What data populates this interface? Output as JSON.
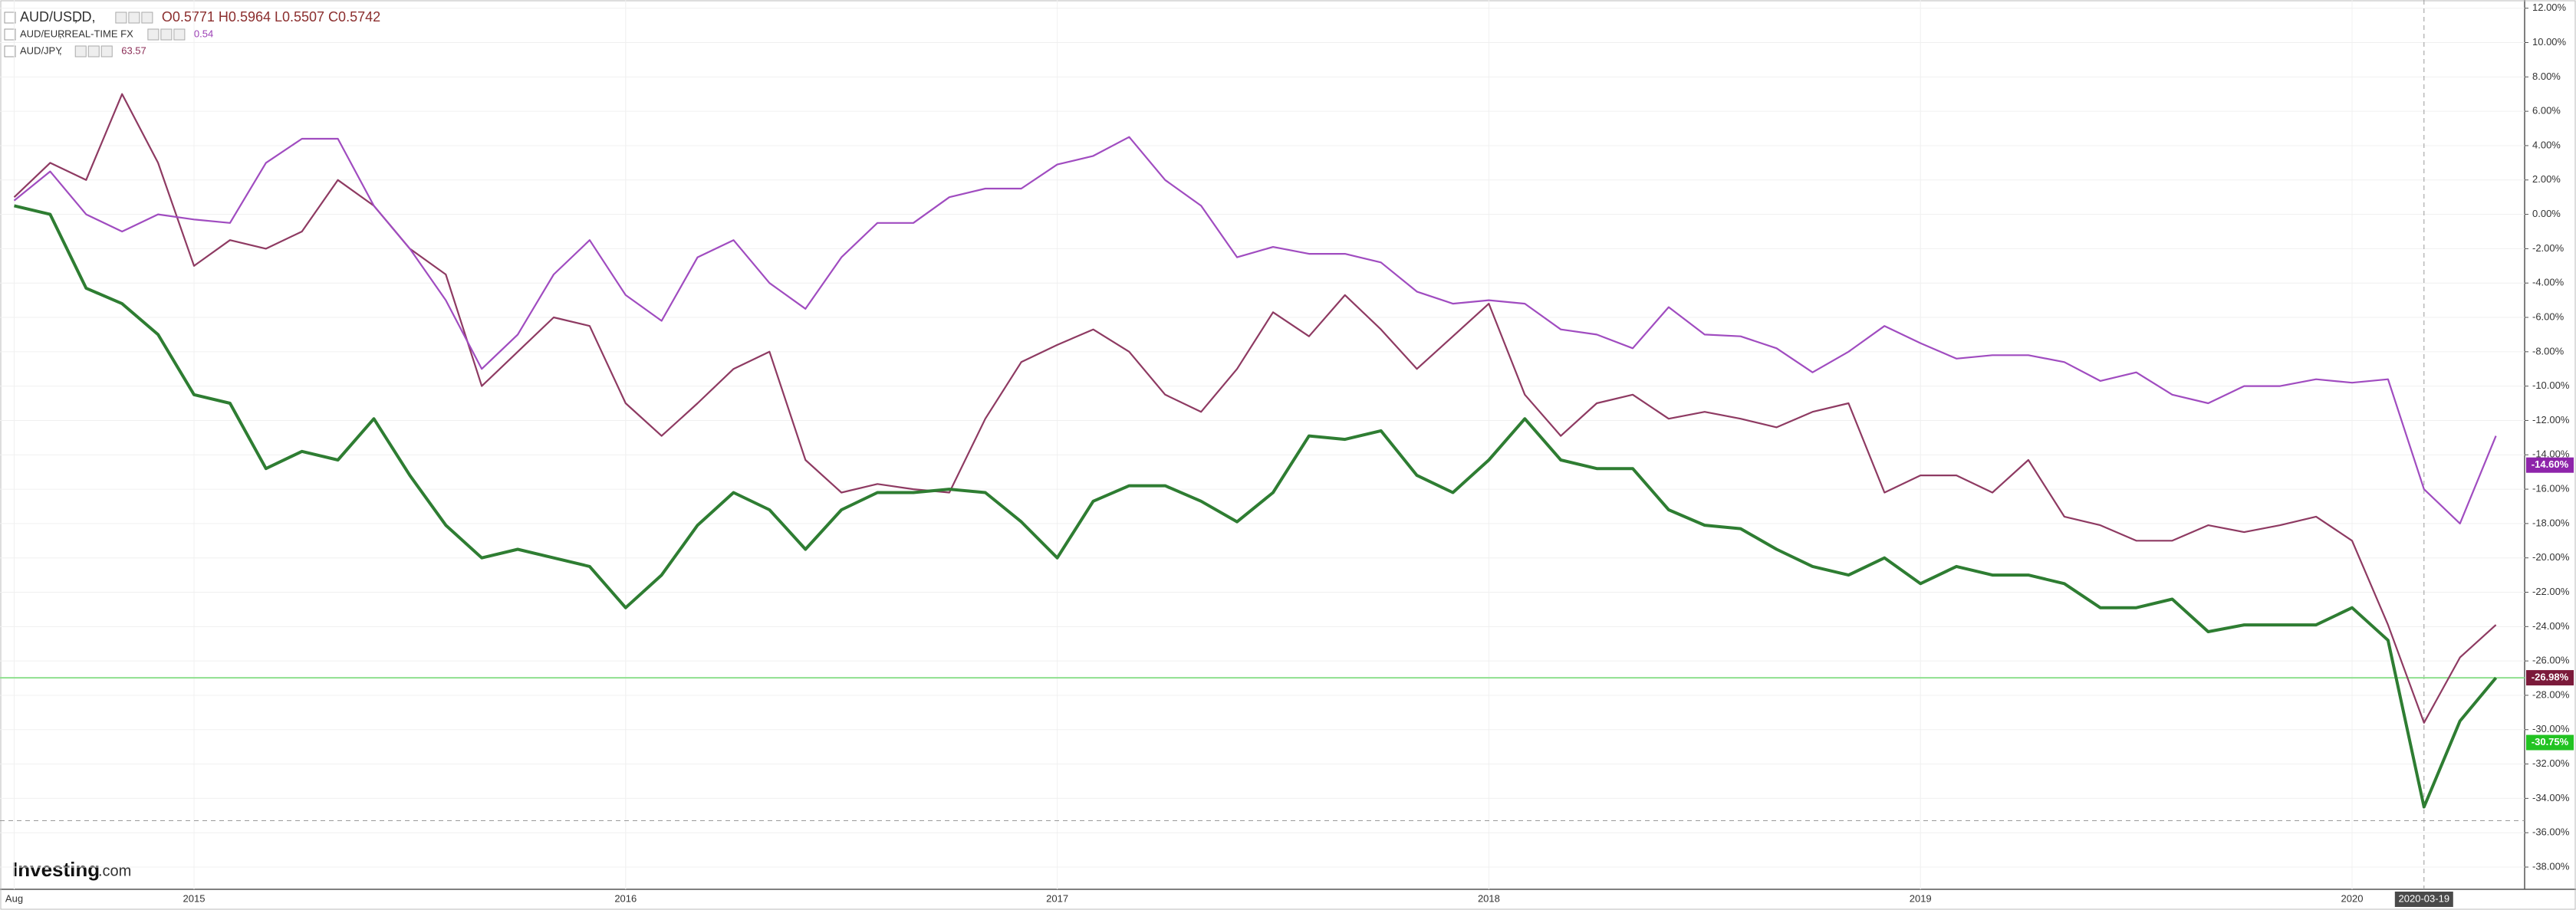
{
  "chart_data": {
    "type": "line",
    "categories": [
      "Aug",
      null,
      null,
      null,
      null,
      "2015",
      null,
      null,
      null,
      null,
      null,
      null,
      null,
      null,
      null,
      null,
      null,
      "2016",
      null,
      null,
      null,
      null,
      null,
      null,
      null,
      null,
      null,
      null,
      null,
      "2017",
      null,
      null,
      null,
      null,
      null,
      null,
      null,
      null,
      null,
      null,
      null,
      "2018",
      null,
      null,
      null,
      null,
      null,
      null,
      null,
      null,
      null,
      null,
      null,
      "2019",
      null,
      null,
      null,
      null,
      null,
      null,
      null,
      null,
      null,
      null,
      null,
      "2020",
      null,
      "2020-03-19",
      null,
      null
    ],
    "series": [
      {
        "name": "AUD/USD",
        "detail": ", D,",
        "legend_value": "O0.5771 H0.5964 L0.5507 C0.5742",
        "legend_value_color": "#8b2e2e",
        "color": "#2e7d32",
        "values": [
          0.5,
          0,
          -4.3,
          -5.2,
          -7,
          -10.5,
          -11,
          -14.8,
          -13.8,
          -14.3,
          -11.9,
          -15.2,
          -18.1,
          -20,
          -19.5,
          -20,
          -20.5,
          -22.9,
          -21,
          -18.1,
          -16.2,
          -17.2,
          -19.5,
          -17.2,
          -16.2,
          -16.2,
          -16,
          -16.2,
          -17.9,
          -20,
          -16.7,
          -15.8,
          -15.8,
          -16.7,
          -17.9,
          -16.2,
          -12.9,
          -13.1,
          -12.6,
          -15.2,
          -16.2,
          -14.3,
          -11.9,
          -14.3,
          -14.8,
          -14.8,
          -17.2,
          -18.1,
          -18.3,
          -19.5,
          -20.5,
          -21,
          -20,
          -21.5,
          -20.5,
          -21,
          -21,
          -21.5,
          -22.9,
          -22.9,
          -22.4,
          -24.3,
          -23.9,
          -23.9,
          -23.9,
          -22.9,
          -24.8,
          -34.5,
          -29.5,
          -26.98
        ]
      },
      {
        "name": "AUD/EUR",
        "detail": ", REAL-TIME FX",
        "legend_value": "0.54",
        "legend_value_color": "#9c3fb5",
        "color": "#a04cc0",
        "values": [
          0.8,
          2.5,
          0,
          -1,
          0,
          -0.3,
          -0.5,
          3,
          4.4,
          4.4,
          0.5,
          -2,
          -5,
          -9,
          -7,
          -3.5,
          -1.5,
          -4.7,
          -6.2,
          -2.5,
          -1.5,
          -4,
          -5.5,
          -2.5,
          -0.5,
          -0.5,
          1,
          1.5,
          1.5,
          2.9,
          3.4,
          4.5,
          2,
          0.5,
          -2.5,
          -1.9,
          -2.3,
          -2.3,
          -2.8,
          -4.5,
          -5.2,
          -5,
          -5.2,
          -6.7,
          -7,
          -7.8,
          -5.4,
          -7,
          -7.1,
          -7.8,
          -9.2,
          -8,
          -6.5,
          -7.5,
          -8.4,
          -8.2,
          -8.2,
          -8.6,
          -9.7,
          -9.2,
          -10.5,
          -11,
          -10,
          -10,
          -9.6,
          -9.8,
          -9.6,
          -16,
          -18,
          -12.9
        ]
      },
      {
        "name": "AUD/JPY",
        "detail": ",",
        "legend_value": "63.57",
        "legend_value_color": "#8b2e57",
        "color": "#8e3a62",
        "values": [
          1,
          3,
          2,
          7,
          3,
          -3,
          -1.5,
          -2,
          -1,
          2,
          0.5,
          -2,
          -3.5,
          -10,
          -8,
          -6,
          -6.5,
          -11,
          -12.9,
          -11,
          -9,
          -8,
          -14.3,
          -16.2,
          -15.7,
          -16,
          -16.2,
          -11.9,
          -8.6,
          -7.6,
          -6.7,
          -8,
          -10.5,
          -11.5,
          -9,
          -5.7,
          -7.1,
          -4.7,
          -6.7,
          -9,
          -7.1,
          -5.2,
          -10.5,
          -12.9,
          -11,
          -10.5,
          -11.9,
          -11.5,
          -11.9,
          -12.4,
          -11.5,
          -11,
          -16.2,
          -15.2,
          -15.2,
          -16.2,
          -14.3,
          -17.6,
          -18.1,
          -19,
          -19,
          -18.1,
          -18.5,
          -18.1,
          -17.6,
          -19,
          -23.9,
          -29.6,
          -25.8,
          -23.9
        ]
      }
    ],
    "ylim": [
      12,
      -38
    ],
    "yticks": [
      {
        "value": 12,
        "label": "12.00%"
      },
      {
        "value": 10,
        "label": "10.00%"
      },
      {
        "value": 8,
        "label": "8.00%"
      },
      {
        "value": 6,
        "label": "6.00%"
      },
      {
        "value": 4,
        "label": "4.00%"
      },
      {
        "value": 2,
        "label": "2.00%"
      },
      {
        "value": 0,
        "label": "0.00%"
      },
      {
        "value": -2,
        "label": "-2.00%"
      },
      {
        "value": -4,
        "label": "-4.00%"
      },
      {
        "value": -6,
        "label": "-6.00%"
      },
      {
        "value": -8,
        "label": "-8.00%"
      },
      {
        "value": -10,
        "label": "-10.00%"
      },
      {
        "value": -12,
        "label": "-12.00%"
      },
      {
        "value": -14,
        "label": "-14.00%"
      },
      {
        "value": -16,
        "label": "-16.00%"
      },
      {
        "value": -18,
        "label": "-18.00%"
      },
      {
        "value": -20,
        "label": "-20.00%"
      },
      {
        "value": -22,
        "label": "-22.00%"
      },
      {
        "value": -24,
        "label": "-24.00%"
      },
      {
        "value": -26,
        "label": "-26.00%"
      },
      {
        "value": -28,
        "label": "-28.00%"
      },
      {
        "value": -30,
        "label": "-30.00%"
      },
      {
        "value": -32,
        "label": "-32.00%"
      },
      {
        "value": -34,
        "label": "-34.00%"
      },
      {
        "value": -36,
        "label": "-36.00%"
      },
      {
        "value": -38,
        "label": "-38.00%"
      }
    ],
    "grid": true,
    "price_labels": [
      {
        "value": -14.6,
        "label": "-14.60%",
        "color": "#8e24aa"
      },
      {
        "value": -26.98,
        "label": "-26.98%",
        "color": "#7b1a3a"
      },
      {
        "value": -30.75,
        "label": "-30.75%",
        "color": "#22c322"
      }
    ],
    "price_line": {
      "value": -26.98,
      "color": "#8fe08f"
    },
    "crosshair_y": -35.3,
    "logo": {
      "name": "Investing",
      "suffix": ".com"
    }
  }
}
